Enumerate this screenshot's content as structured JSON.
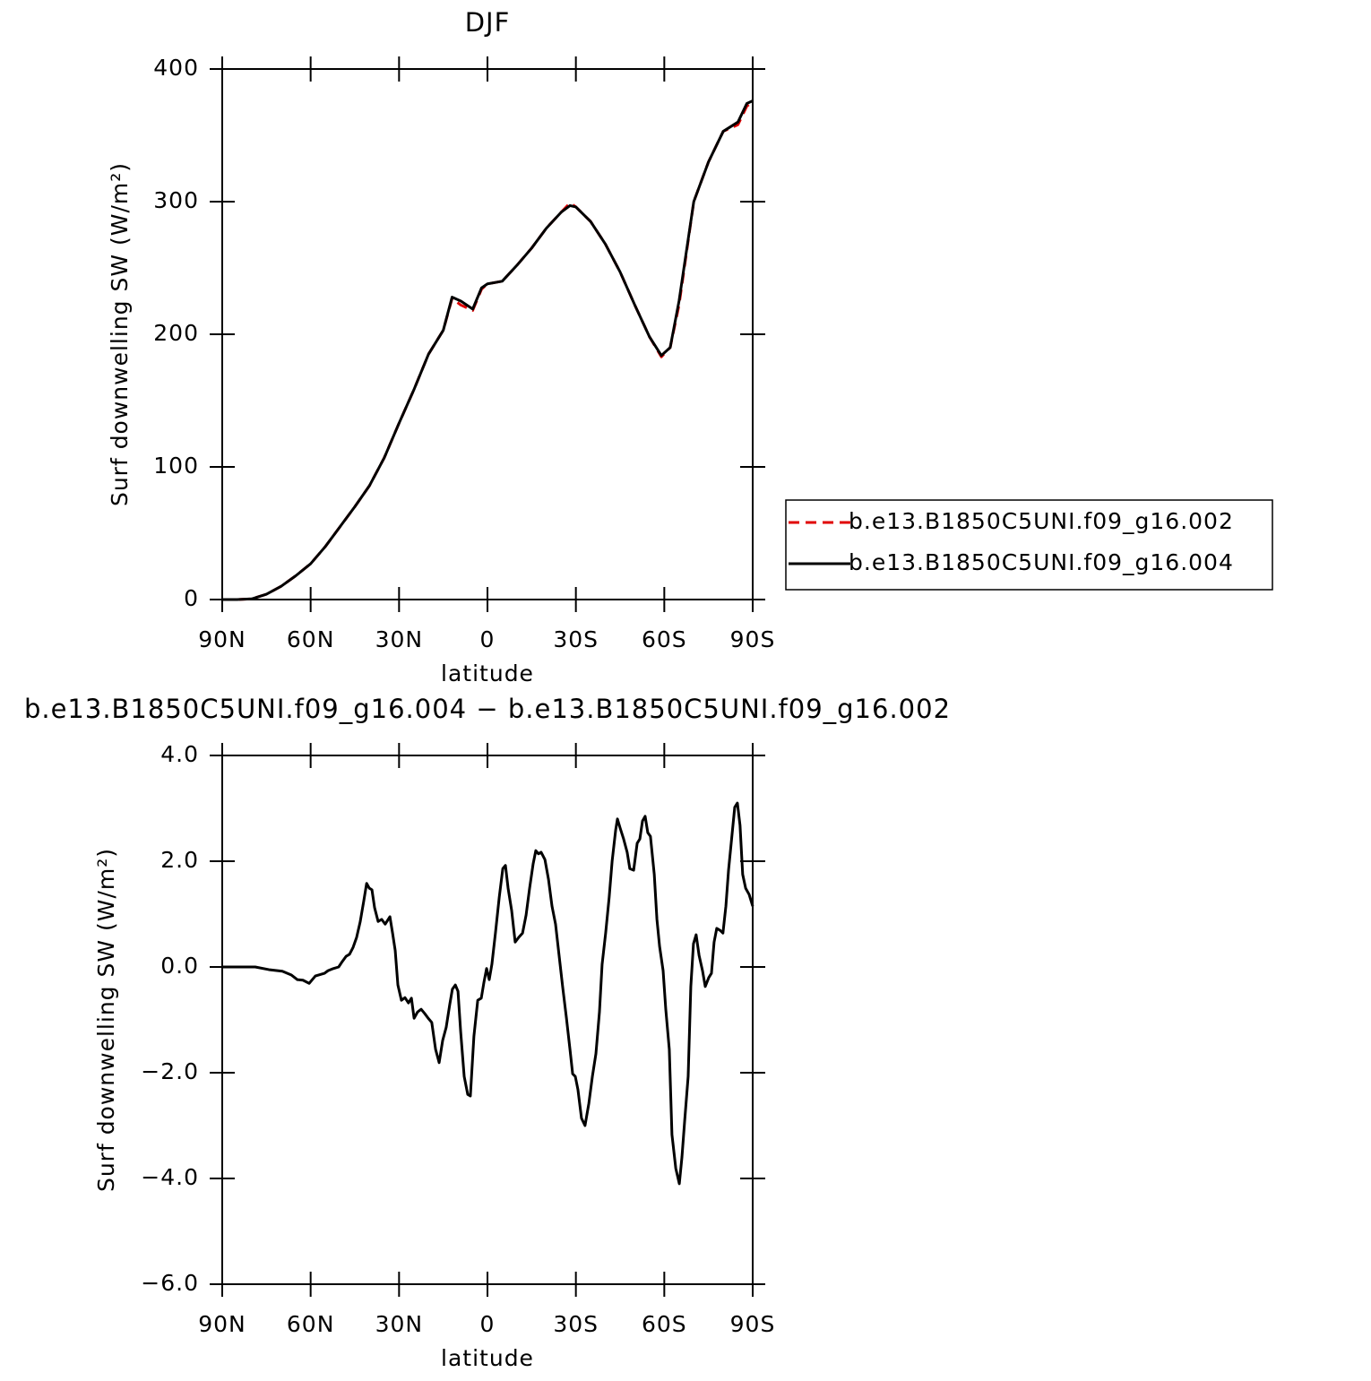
{
  "chart_data": [
    {
      "type": "line",
      "title": "DJF",
      "x_label": "latitude",
      "y_label": "Surf downwelling SW (W/m²)",
      "x": [
        90,
        85,
        80,
        75,
        70,
        65,
        60,
        55,
        50,
        45,
        40,
        35,
        30,
        25,
        20,
        15,
        12,
        9,
        5,
        2,
        0,
        -5,
        -10,
        -15,
        -20,
        -25,
        -28,
        -30,
        -35,
        -40,
        -45,
        -50,
        -55,
        -59,
        -62,
        -65,
        -70,
        -75,
        -80,
        -85,
        -88,
        -90
      ],
      "series": [
        {
          "name": "b.e13.B1850C5UNI.f09_g16.002",
          "color": "#e00000",
          "linestyle": "dashed",
          "values": [
            0,
            0,
            0.5,
            4,
            10,
            18,
            27,
            40,
            55,
            70,
            86,
            107,
            133,
            158,
            185,
            203,
            227,
            222,
            218,
            234,
            238,
            240,
            252,
            265,
            280,
            292,
            299,
            296,
            285,
            268,
            247,
            222,
            198,
            183,
            190,
            222,
            300,
            330,
            353,
            358,
            372,
            375
          ]
        },
        {
          "name": "b.e13.B1850C5UNI.f09_g16.004",
          "color": "#000000",
          "linestyle": "solid",
          "values": [
            0,
            0,
            0.5,
            4,
            10,
            18,
            27,
            40,
            55,
            70,
            86,
            107,
            133,
            158,
            185,
            203,
            228,
            225,
            219,
            235,
            238,
            240,
            252,
            265,
            280,
            292,
            297,
            296,
            285,
            268,
            247,
            222,
            198,
            184,
            190,
            225,
            300,
            330,
            353,
            360,
            374,
            376
          ]
        }
      ],
      "xlim": [
        90,
        -90
      ],
      "xticks": [
        {
          "value": 90,
          "label": "90N"
        },
        {
          "value": 60,
          "label": "60N"
        },
        {
          "value": 30,
          "label": "30N"
        },
        0,
        {
          "value": -30,
          "label": "30S"
        },
        {
          "value": -60,
          "label": "60S"
        },
        {
          "value": -90,
          "label": "90S"
        }
      ],
      "ylim": [
        0,
        400
      ],
      "yticks": [
        0,
        100,
        200,
        300,
        400
      ],
      "legend": "right"
    },
    {
      "type": "line",
      "title": "b.e13.B1850C5UNI.f09_g16.004 − b.e13.B1850C5UNI.f09_g16.002",
      "x_label": "latitude",
      "y_label": "Surf downwelling SW (W/m²)",
      "x": [
        90,
        78.8,
        74.2,
        69.6,
        66.6,
        64.5,
        62.6,
        60.5,
        58.4,
        56.6,
        55.3,
        54.1,
        52.3,
        50.5,
        49.3,
        48.0,
        46.8,
        45.6,
        44.4,
        43.2,
        42.0,
        41.0,
        40.1,
        39.2,
        38.3,
        37.1,
        35.9,
        34.7,
        33.1,
        32.2,
        31.3,
        30.4,
        29.2,
        28.0,
        26.8,
        25.8,
        24.9,
        23.7,
        22.5,
        21.3,
        20.1,
        18.9,
        17.6,
        16.4,
        15.2,
        14.0,
        12.8,
        11.9,
        10.9,
        10.0,
        9.1,
        7.9,
        6.7,
        5.8,
        4.6,
        3.3,
        2.1,
        1.2,
        0.3,
        -0.6,
        -1.5,
        -2.7,
        -4.0,
        -5.2,
        -6.1,
        -7.0,
        -8.2,
        -9.4,
        -10.6,
        -11.9,
        -13.1,
        -14.3,
        -15.5,
        -16.4,
        -17.3,
        -18.2,
        -19.5,
        -20.7,
        -21.9,
        -23.1,
        -24.3,
        -25.5,
        -26.8,
        -28.0,
        -28.9,
        -29.8,
        -30.7,
        -31.9,
        -33.1,
        -34.4,
        -35.6,
        -36.8,
        -38.0,
        -38.9,
        -40.1,
        -41.3,
        -42.3,
        -43.5,
        -44.1,
        -45.0,
        -46.2,
        -47.4,
        -48.3,
        -49.6,
        -50.8,
        -51.7,
        -52.6,
        -53.5,
        -54.4,
        -55.3,
        -56.6,
        -57.5,
        -58.4,
        -59.6,
        -60.5,
        -61.7,
        -62.6,
        -63.9,
        -65.1,
        -66.0,
        -66.9,
        -68.1,
        -69.0,
        -69.9,
        -70.8,
        -71.8,
        -73.0,
        -73.9,
        -75.1,
        -76.0,
        -76.9,
        -77.8,
        -79.0,
        -79.9,
        -80.9,
        -81.8,
        -83.0,
        -83.9,
        -84.8,
        -85.7,
        -86.6,
        -87.6,
        -88.8,
        -90
      ],
      "series": [
        {
          "color": "#000000",
          "values": [
            0,
            0,
            -0.05,
            -0.08,
            -0.15,
            -0.24,
            -0.25,
            -0.31,
            -0.17,
            -0.14,
            -0.12,
            -0.07,
            -0.03,
            0,
            0.1,
            0.2,
            0.24,
            0.37,
            0.56,
            0.85,
            1.24,
            1.58,
            1.49,
            1.46,
            1.12,
            0.86,
            0.9,
            0.81,
            0.95,
            0.64,
            0.31,
            -0.34,
            -0.63,
            -0.58,
            -0.68,
            -0.59,
            -0.97,
            -0.85,
            -0.8,
            -0.88,
            -0.97,
            -1.05,
            -1.56,
            -1.81,
            -1.39,
            -1.14,
            -0.71,
            -0.42,
            -0.34,
            -0.46,
            -1.22,
            -2.07,
            -2.41,
            -2.44,
            -1.31,
            -0.63,
            -0.59,
            -0.29,
            -0.03,
            -0.24,
            0.05,
            0.64,
            1.32,
            1.86,
            1.92,
            1.49,
            1.07,
            0.47,
            0.56,
            0.64,
            0.98,
            1.49,
            1.95,
            2.2,
            2.14,
            2.17,
            2.03,
            1.66,
            1.15,
            0.81,
            0.22,
            -0.37,
            -0.97,
            -1.56,
            -2.02,
            -2.07,
            -2.32,
            -2.86,
            -3.0,
            -2.58,
            -2.07,
            -1.64,
            -0.85,
            0.05,
            0.64,
            1.32,
            2.0,
            2.59,
            2.8,
            2.63,
            2.42,
            2.17,
            1.86,
            1.83,
            2.34,
            2.42,
            2.76,
            2.85,
            2.54,
            2.47,
            1.75,
            0.9,
            0.39,
            -0.07,
            -0.8,
            -1.56,
            -3.17,
            -3.81,
            -4.1,
            -3.59,
            -2.92,
            -2.07,
            -0.37,
            0.44,
            0.61,
            0.22,
            -0.08,
            -0.37,
            -0.2,
            -0.12,
            0.47,
            0.73,
            0.69,
            0.64,
            1.15,
            1.83,
            2.51,
            3.02,
            3.1,
            2.68,
            1.75,
            1.49,
            1.37,
            1.15
          ]
        }
      ],
      "xlim": [
        90,
        -90
      ],
      "xticks": [
        {
          "value": 90,
          "label": "90N"
        },
        {
          "value": 60,
          "label": "60N"
        },
        {
          "value": 30,
          "label": "30N"
        },
        0,
        {
          "value": -30,
          "label": "30S"
        },
        {
          "value": -60,
          "label": "60S"
        },
        {
          "value": -90,
          "label": "90S"
        }
      ],
      "ylim": [
        -6,
        4
      ],
      "yticks": [
        {
          "value": -6,
          "label": "−6.0"
        },
        {
          "value": -4,
          "label": "−4.0"
        },
        {
          "value": -2,
          "label": "−2.0"
        },
        {
          "value": 0,
          "label": "0.0"
        },
        {
          "value": 2,
          "label": "2.0"
        },
        {
          "value": 4,
          "label": "4.0"
        }
      ]
    }
  ]
}
